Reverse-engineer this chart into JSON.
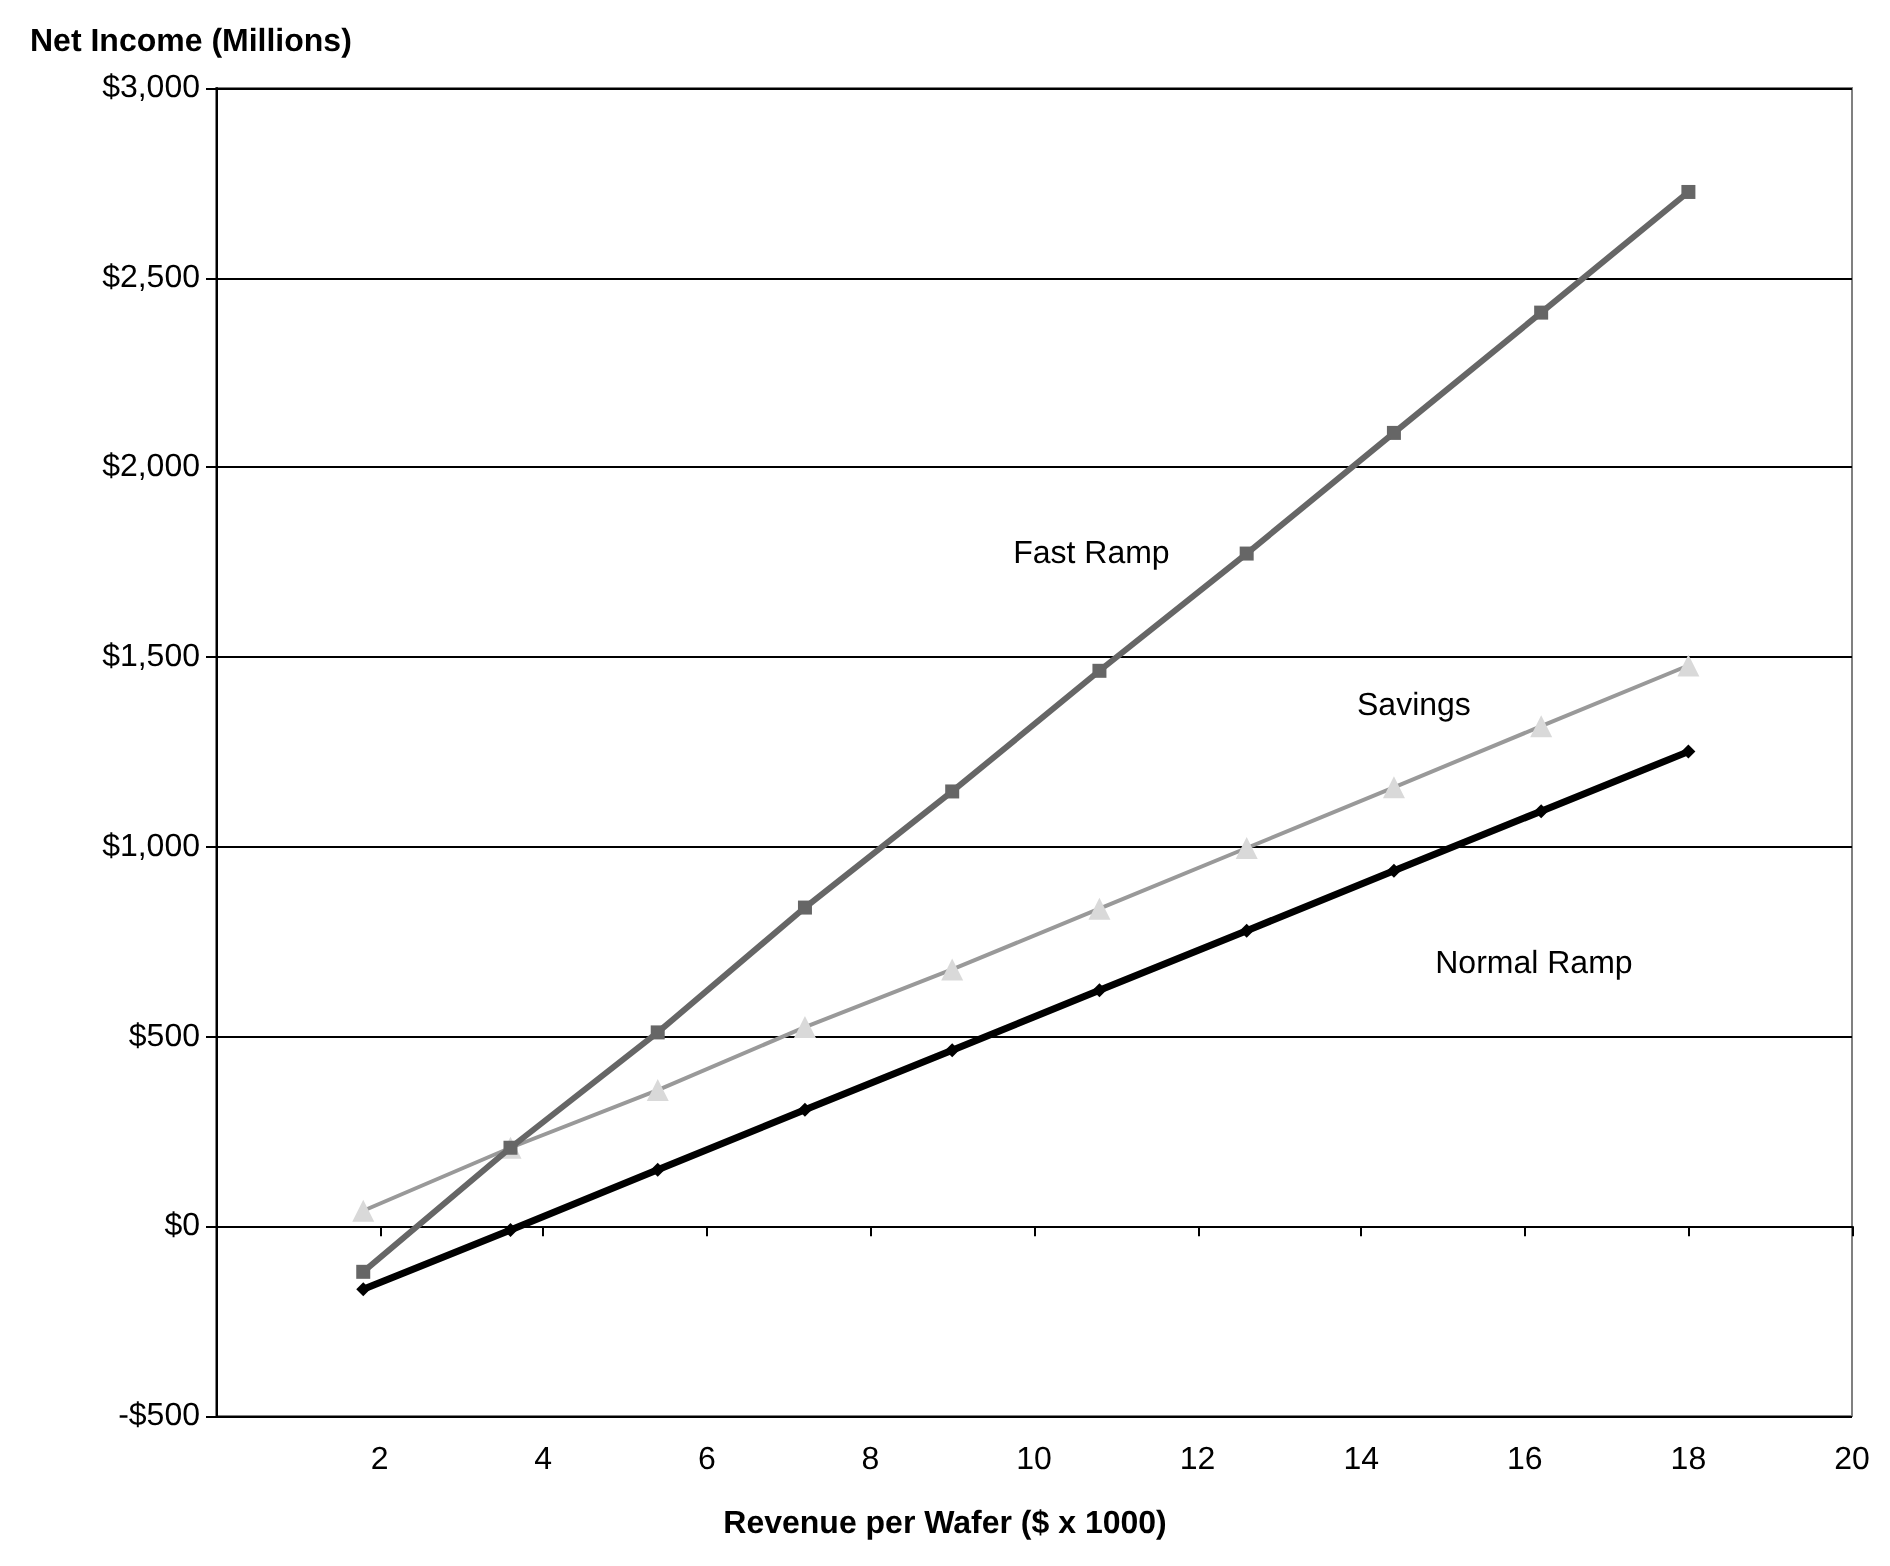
{
  "chart_data": {
    "type": "line",
    "ylabel": "Net Income (Millions)",
    "xlabel": "Revenue per Wafer ($ x 1000)",
    "x": [
      1.8,
      3.6,
      5.4,
      7.2,
      9.0,
      10.8,
      12.6,
      14.4,
      16.2,
      18
    ],
    "series": [
      {
        "name": "Fast Ramp",
        "color": "#666666",
        "marker": "square",
        "values": [
          -120,
          207,
          511,
          840,
          1146,
          1464,
          1773,
          2091,
          2408,
          2726
        ]
      },
      {
        "name": "Savings",
        "color": "#999999",
        "marker": "triangle",
        "values": [
          41,
          207,
          359,
          525,
          677,
          837,
          997,
          1157,
          1318,
          1478
        ]
      },
      {
        "name": "Normal Ramp",
        "color": "#000000",
        "marker": "diamond",
        "values": [
          -166,
          -10,
          149,
          307,
          464,
          622,
          779,
          937,
          1094,
          1251
        ]
      }
    ],
    "xlim": [
      0,
      20
    ],
    "xticks": [
      2,
      4,
      6,
      8,
      10,
      12,
      14,
      16,
      18,
      20
    ],
    "ylim": [
      -500,
      3000
    ],
    "yticks": [
      {
        "value": -500,
        "label": "-$500"
      },
      {
        "value": 0,
        "label": "$0"
      },
      {
        "value": 500,
        "label": "$500"
      },
      {
        "value": 1000,
        "label": "$1,000"
      },
      {
        "value": 1500,
        "label": "$1,500"
      },
      {
        "value": 2000,
        "label": "$2,000"
      },
      {
        "value": 2500,
        "label": "$2,500"
      },
      {
        "value": 3000,
        "label": "$3,000"
      }
    ],
    "grid": "y",
    "legend": false
  }
}
